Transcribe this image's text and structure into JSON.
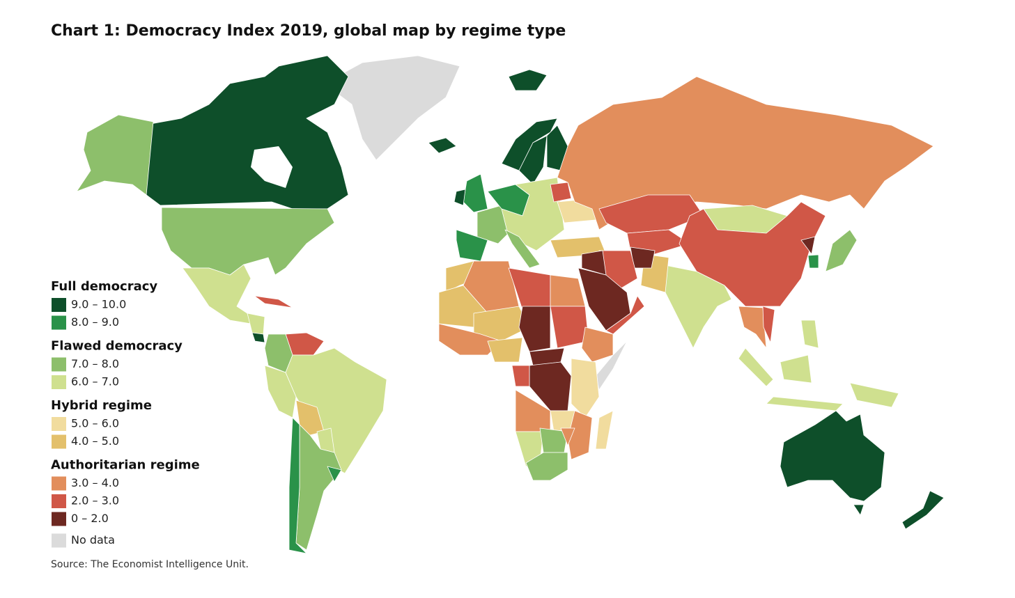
{
  "title": "Chart 1: Democracy Index 2019, global map by regime type",
  "legend": {
    "groups": [
      {
        "name": "Full democracy",
        "items": [
          {
            "label": "9.0 – 10.0",
            "color": "#0e4f2a"
          },
          {
            "label": "8.0 – 9.0",
            "color": "#2a9249"
          }
        ]
      },
      {
        "name": "Flawed democracy",
        "items": [
          {
            "label": "7.0 – 8.0",
            "color": "#8dbf6b"
          },
          {
            "label": "6.0 – 7.0",
            "color": "#cfe08f"
          }
        ]
      },
      {
        "name": "Hybrid regime",
        "items": [
          {
            "label": "5.0 – 6.0",
            "color": "#f1dc9e"
          },
          {
            "label": "4.0 – 5.0",
            "color": "#e3c06b"
          }
        ]
      },
      {
        "name": "Authoritarian regime",
        "items": [
          {
            "label": "3.0 – 4.0",
            "color": "#e28e5c"
          },
          {
            "label": "2.0 – 3.0",
            "color": "#d05747"
          },
          {
            "label": "0 – 2.0",
            "color": "#6d2821"
          }
        ]
      }
    ],
    "no_data": {
      "label": "No data",
      "color": "#dbdbdb"
    }
  },
  "source": "Source: The Economist Intelligence Unit."
}
